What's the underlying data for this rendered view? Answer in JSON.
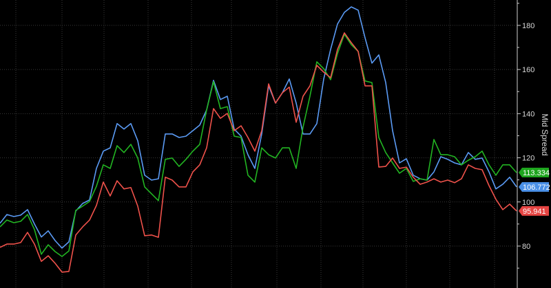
{
  "chart_data": {
    "type": "line",
    "title": "",
    "xlabel": "",
    "ylabel": "Mid Spread",
    "ylim": [
      61,
      191.5
    ],
    "yticks": [
      "80",
      "100",
      "120",
      "140",
      "160",
      "180"
    ],
    "grid": true,
    "y_axis_side": "right",
    "background": "#000000",
    "series": [
      {
        "color": "#5b9bf5",
        "label_color": "#4a8fe6",
        "last_value_label": "106.772",
        "values": [
          90.3,
          94.3,
          93.4,
          94.0,
          96.5,
          90.0,
          84.1,
          86.9,
          82.5,
          79.1,
          81.9,
          95.9,
          99.3,
          100.9,
          115.2,
          123.0,
          124.5,
          135.5,
          133.0,
          135.5,
          127.7,
          112.1,
          109.9,
          110.5,
          130.8,
          130.8,
          129.2,
          129.8,
          132.3,
          134.8,
          141.7,
          155.1,
          146.4,
          147.9,
          133.0,
          129.8,
          121.4,
          115.2,
          130.8,
          152.6,
          144.8,
          149.5,
          155.7,
          144.8,
          130.8,
          130.8,
          135.5,
          155.7,
          169.1,
          180.6,
          185.9,
          188.4,
          186.9,
          174.4,
          162.9,
          166.6,
          154.1,
          132.3,
          117.7,
          119.6,
          112.1,
          110.5,
          109.9,
          113.6,
          120.5,
          119.3,
          117.7,
          116.8,
          122.4,
          119.3,
          119.9,
          113.6,
          105.9,
          108.0,
          111.2,
          106.8
        ]
      },
      {
        "color": "#22b522",
        "label_color": "#1ea51e",
        "last_value_label": "113.334",
        "values": [
          88.7,
          91.8,
          90.6,
          91.2,
          94.3,
          87.5,
          76.3,
          80.6,
          77.5,
          75.3,
          77.8,
          96.2,
          98.1,
          100.2,
          107.1,
          116.8,
          115.2,
          125.5,
          122.4,
          126.1,
          119.9,
          106.8,
          103.7,
          100.6,
          119.3,
          119.9,
          116.1,
          119.3,
          123.0,
          126.1,
          141.7,
          154.5,
          142.3,
          143.2,
          129.8,
          129.2,
          112.1,
          109.0,
          124.5,
          121.4,
          119.9,
          124.5,
          124.5,
          115.2,
          133.9,
          147.9,
          163.5,
          160.4,
          155.4,
          167.2,
          176.0,
          171.3,
          168.2,
          154.8,
          154.1,
          129.2,
          122.4,
          117.7,
          113.0,
          115.2,
          109.3,
          110.5,
          109.9,
          128.3,
          121.4,
          121.4,
          120.5,
          116.8,
          118.9,
          120.5,
          123.0,
          116.8,
          112.1,
          116.8,
          116.8,
          113.3
        ]
      },
      {
        "color": "#f0524b",
        "label_color": "#e54442",
        "last_value_label": "95.941",
        "values": [
          79.4,
          80.9,
          80.9,
          81.6,
          86.2,
          80.9,
          73.1,
          75.6,
          72.2,
          68.2,
          68.5,
          85.0,
          88.7,
          91.8,
          98.4,
          109.0,
          102.7,
          109.6,
          105.9,
          106.5,
          98.1,
          84.7,
          85.0,
          84.0,
          111.2,
          109.9,
          106.8,
          106.8,
          113.6,
          116.8,
          124.5,
          142.3,
          137.9,
          140.1,
          132.3,
          134.5,
          129.2,
          123.0,
          132.3,
          153.5,
          144.8,
          149.5,
          152.0,
          136.1,
          147.9,
          152.6,
          161.9,
          158.8,
          156.3,
          169.1,
          176.6,
          172.2,
          168.2,
          152.6,
          152.6,
          115.8,
          116.1,
          119.9,
          115.2,
          115.8,
          111.2,
          108.0,
          109.0,
          110.5,
          109.0,
          109.9,
          108.7,
          110.5,
          116.8,
          115.2,
          114.6,
          107.4,
          101.2,
          96.5,
          99.0,
          95.9
        ]
      }
    ]
  }
}
